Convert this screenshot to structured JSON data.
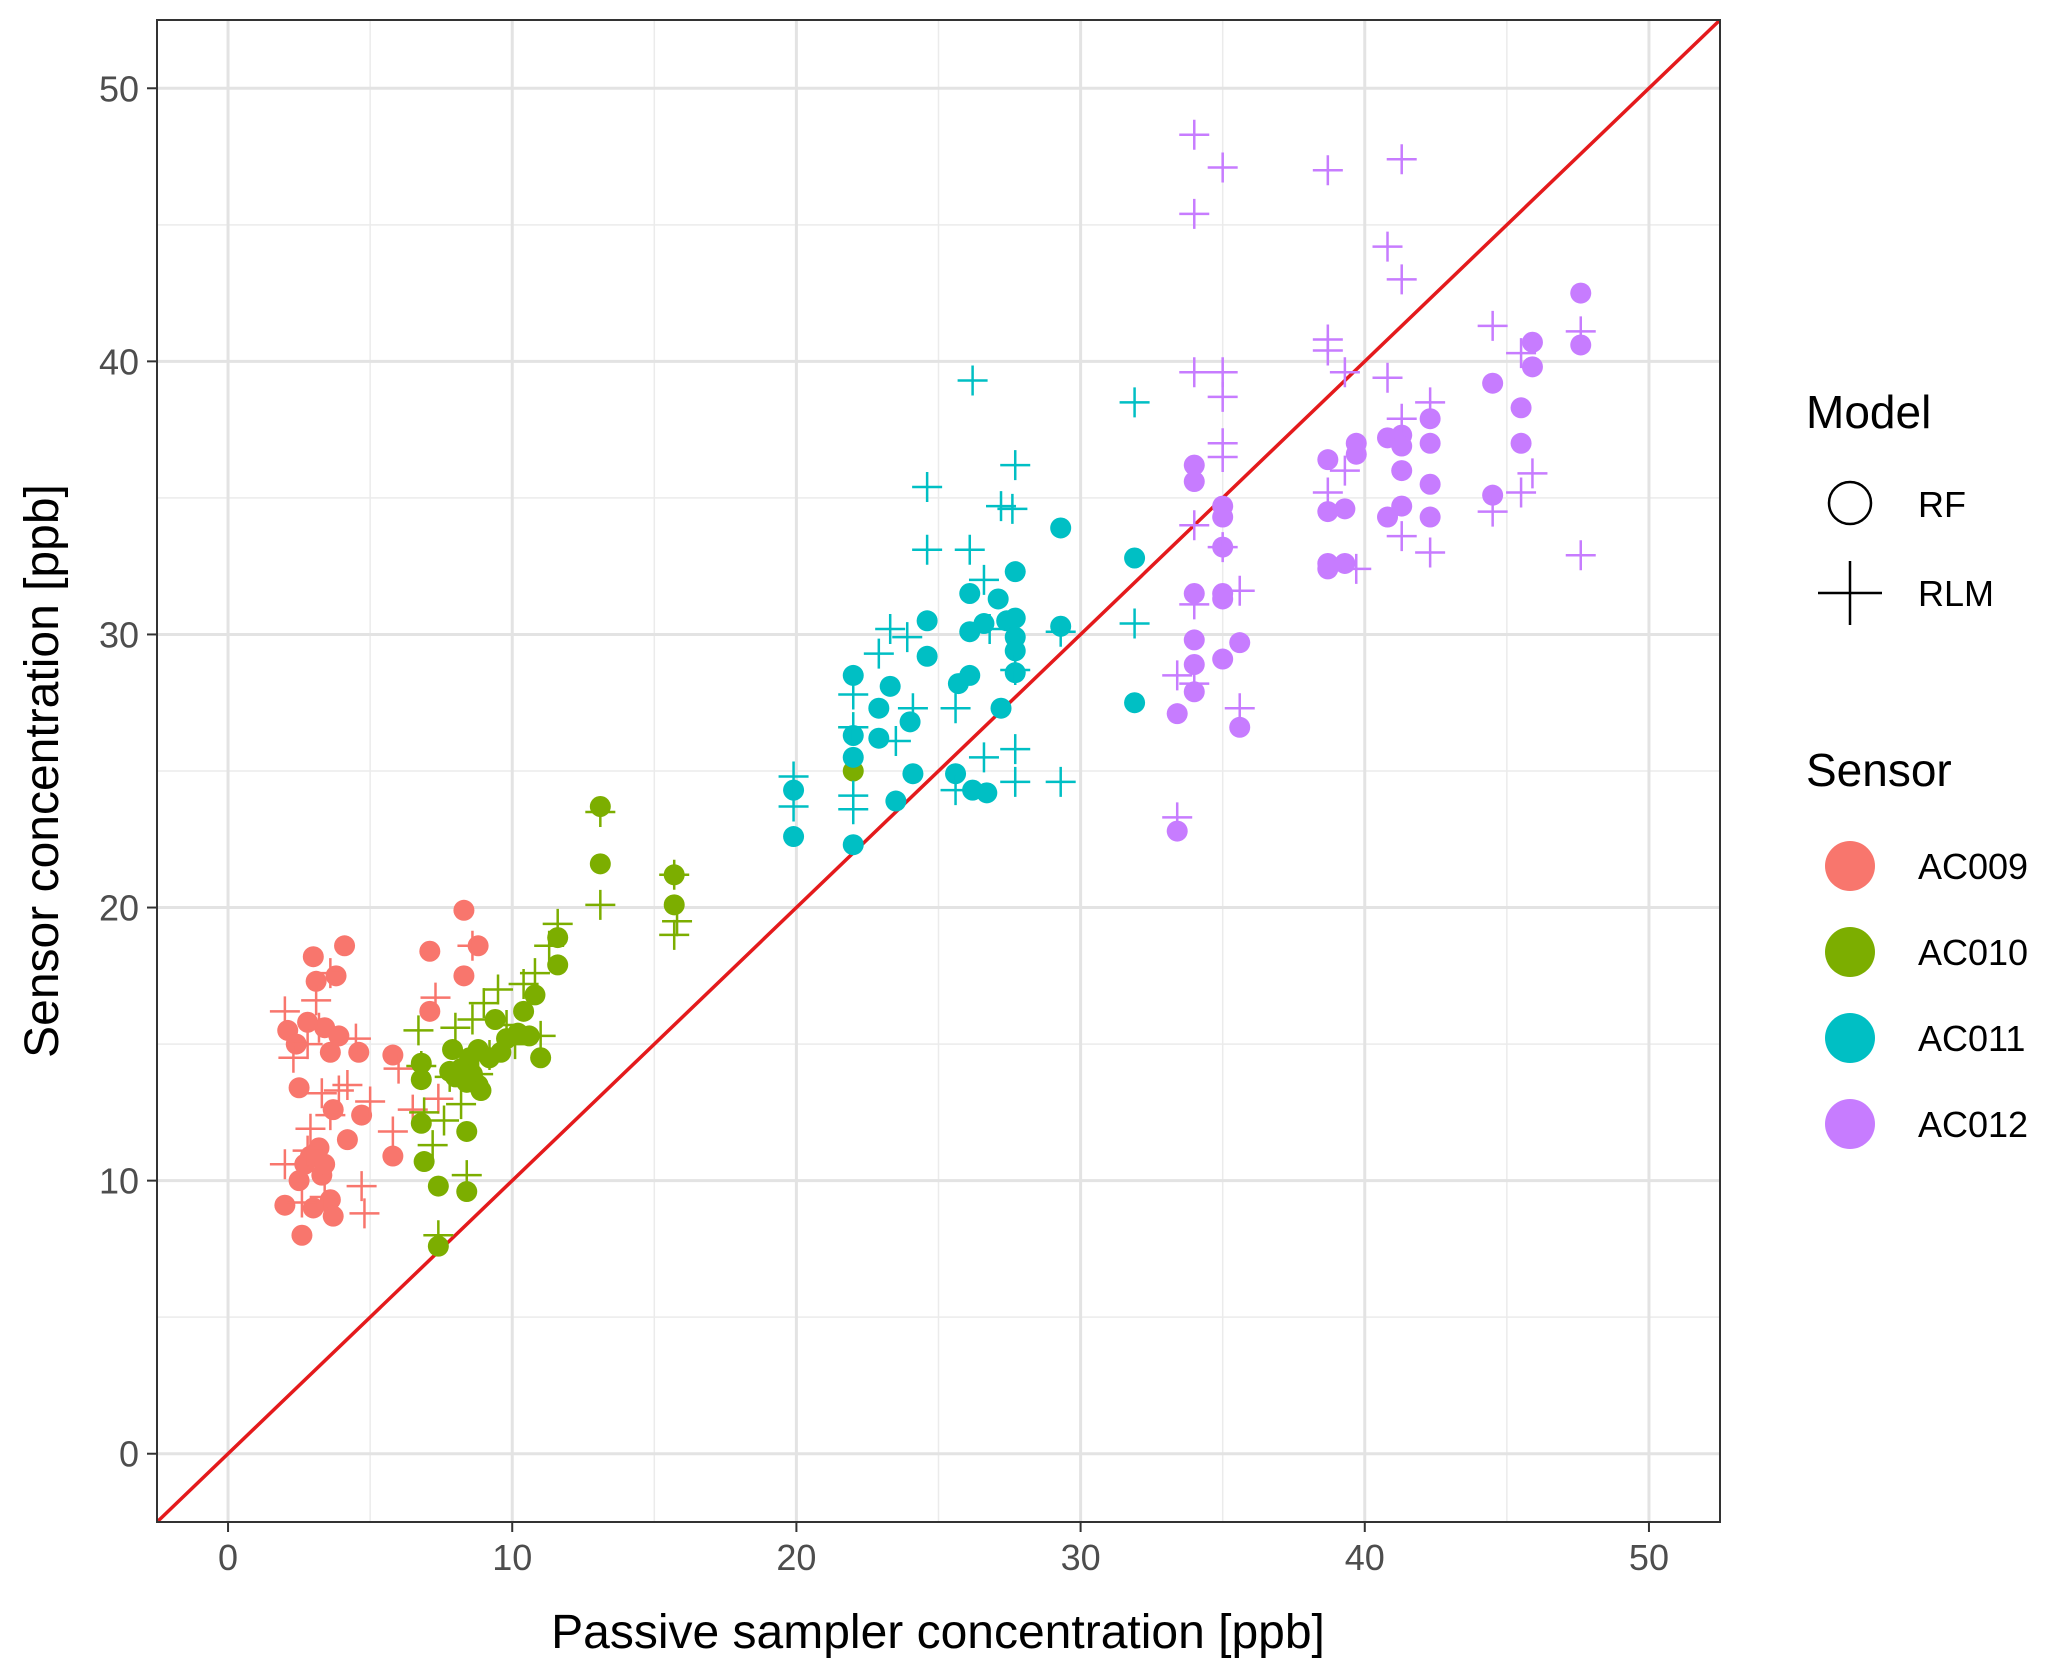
{
  "chart_data": {
    "type": "scatter",
    "xlabel": "Passive sampler concentration [ppb]",
    "ylabel": "Sensor concentration [ppb]",
    "xlim": [
      -2.5,
      52.5
    ],
    "ylim": [
      -2.5,
      52.5
    ],
    "x_ticks": [
      0,
      10,
      20,
      30,
      40,
      50
    ],
    "y_ticks": [
      0,
      10,
      20,
      30,
      40,
      50
    ],
    "grid": true,
    "legend_position": "right",
    "reference_line": {
      "slope": 1,
      "intercept": 0,
      "color": "#e41a1c"
    },
    "legend": {
      "model_title": "Model",
      "models": [
        {
          "name": "RF",
          "shape": "circle"
        },
        {
          "name": "RLM",
          "shape": "cross"
        }
      ],
      "sensor_title": "Sensor",
      "sensors": [
        {
          "name": "AC009",
          "color": "#f8766d"
        },
        {
          "name": "AC010",
          "color": "#7cae00"
        },
        {
          "name": "AC011",
          "color": "#00bfc4"
        },
        {
          "name": "AC012",
          "color": "#c77cff"
        }
      ]
    },
    "series": [
      {
        "name": "AC009",
        "model": "RF",
        "shape": "circle",
        "color": "#f8766d",
        "points": [
          [
            2,
            9.1
          ],
          [
            2.1,
            15.5
          ],
          [
            2.4,
            15.0
          ],
          [
            2.5,
            13.4
          ],
          [
            2.5,
            10.0
          ],
          [
            2.6,
            8.0
          ],
          [
            2.7,
            10.6
          ],
          [
            2.8,
            15.8
          ],
          [
            3.0,
            18.2
          ],
          [
            3.1,
            17.3
          ],
          [
            3.2,
            11.2
          ],
          [
            3.3,
            10.2
          ],
          [
            3.4,
            15.6
          ],
          [
            3.6,
            14.7
          ],
          [
            3.6,
            9.3
          ],
          [
            3.7,
            12.6
          ],
          [
            3.7,
            8.7
          ],
          [
            3.8,
            17.5
          ],
          [
            3.9,
            15.3
          ],
          [
            4.1,
            18.6
          ],
          [
            4.2,
            11.5
          ],
          [
            4.6,
            14.7
          ],
          [
            4.7,
            12.4
          ],
          [
            5.8,
            14.6
          ],
          [
            5.8,
            10.9
          ],
          [
            7.1,
            18.4
          ],
          [
            7.1,
            16.2
          ],
          [
            8.3,
            19.9
          ],
          [
            8.3,
            17.5
          ],
          [
            8.8,
            18.6
          ],
          [
            3.0,
            9.0
          ],
          [
            2.9,
            10.9
          ],
          [
            3.4,
            10.6
          ]
        ]
      },
      {
        "name": "AC009",
        "model": "RLM",
        "shape": "cross",
        "color": "#f8766d",
        "points": [
          [
            2.0,
            16.2
          ],
          [
            2.0,
            10.6
          ],
          [
            2.3,
            14.5
          ],
          [
            2.6,
            9.2
          ],
          [
            2.8,
            15.0
          ],
          [
            2.9,
            11.9
          ],
          [
            3.1,
            16.6
          ],
          [
            3.3,
            13.2
          ],
          [
            3.4,
            9.4
          ],
          [
            3.6,
            17.6
          ],
          [
            3.6,
            12.4
          ],
          [
            3.9,
            13.3
          ],
          [
            4.2,
            13.5
          ],
          [
            4.5,
            15.2
          ],
          [
            4.7,
            9.8
          ],
          [
            4.8,
            8.8
          ],
          [
            5.0,
            12.9
          ],
          [
            5.8,
            11.8
          ],
          [
            6.0,
            14.1
          ],
          [
            6.5,
            12.6
          ],
          [
            7.3,
            16.7
          ],
          [
            7.4,
            13.0
          ],
          [
            8.6,
            18.6
          ],
          [
            3.2,
            15.6
          ],
          [
            2.8,
            11.1
          ]
        ]
      },
      {
        "name": "AC010",
        "model": "RF",
        "shape": "circle",
        "color": "#7cae00",
        "points": [
          [
            6.8,
            14.3
          ],
          [
            6.8,
            13.7
          ],
          [
            6.8,
            12.1
          ],
          [
            6.9,
            10.7
          ],
          [
            7.4,
            7.6
          ],
          [
            7.4,
            9.8
          ],
          [
            7.8,
            14.0
          ],
          [
            7.9,
            14.8
          ],
          [
            8.0,
            13.8
          ],
          [
            8.2,
            14.1
          ],
          [
            8.4,
            13.6
          ],
          [
            8.4,
            11.8
          ],
          [
            8.5,
            14.5
          ],
          [
            8.6,
            13.9
          ],
          [
            8.8,
            13.5
          ],
          [
            8.8,
            14.8
          ],
          [
            8.9,
            13.3
          ],
          [
            9.2,
            14.5
          ],
          [
            9.4,
            15.9
          ],
          [
            9.6,
            14.7
          ],
          [
            9.8,
            15.2
          ],
          [
            10.2,
            15.4
          ],
          [
            10.4,
            16.2
          ],
          [
            10.6,
            15.3
          ],
          [
            10.8,
            16.8
          ],
          [
            11.0,
            14.5
          ],
          [
            11.6,
            17.9
          ],
          [
            11.6,
            18.9
          ],
          [
            13.1,
            23.7
          ],
          [
            13.1,
            21.6
          ],
          [
            15.7,
            21.2
          ],
          [
            15.7,
            20.1
          ],
          [
            22.0,
            25.0
          ],
          [
            8.4,
            9.6
          ]
        ]
      },
      {
        "name": "AC010",
        "model": "RLM",
        "shape": "cross",
        "color": "#7cae00",
        "points": [
          [
            6.7,
            15.5
          ],
          [
            6.8,
            14.2
          ],
          [
            6.9,
            12.5
          ],
          [
            7.2,
            11.3
          ],
          [
            7.4,
            8.0
          ],
          [
            7.6,
            12.2
          ],
          [
            7.8,
            13.8
          ],
          [
            8.0,
            15.6
          ],
          [
            8.2,
            12.8
          ],
          [
            8.4,
            10.2
          ],
          [
            8.6,
            15.9
          ],
          [
            8.8,
            13.9
          ],
          [
            9.0,
            16.5
          ],
          [
            9.2,
            14.6
          ],
          [
            9.5,
            17.0
          ],
          [
            9.8,
            15.7
          ],
          [
            10.1,
            15.0
          ],
          [
            10.4,
            17.2
          ],
          [
            10.8,
            17.6
          ],
          [
            11.0,
            15.3
          ],
          [
            11.3,
            18.6
          ],
          [
            11.6,
            19.4
          ],
          [
            13.1,
            20.1
          ],
          [
            13.1,
            23.5
          ],
          [
            15.7,
            21.2
          ],
          [
            15.7,
            19.0
          ],
          [
            15.8,
            19.5
          ],
          [
            22.0,
            26.6
          ]
        ]
      },
      {
        "name": "AC011",
        "model": "RF",
        "shape": "circle",
        "color": "#00bfc4",
        "points": [
          [
            19.9,
            24.3
          ],
          [
            19.9,
            22.6
          ],
          [
            22.0,
            28.5
          ],
          [
            22.0,
            26.3
          ],
          [
            22.0,
            25.5
          ],
          [
            22.0,
            22.3
          ],
          [
            22.9,
            27.3
          ],
          [
            22.9,
            26.2
          ],
          [
            23.3,
            28.1
          ],
          [
            23.5,
            23.9
          ],
          [
            24.0,
            26.8
          ],
          [
            24.1,
            24.9
          ],
          [
            24.6,
            30.5
          ],
          [
            24.6,
            29.2
          ],
          [
            25.6,
            24.9
          ],
          [
            25.7,
            28.2
          ],
          [
            26.1,
            28.5
          ],
          [
            26.1,
            31.5
          ],
          [
            26.1,
            30.1
          ],
          [
            26.2,
            24.3
          ],
          [
            26.6,
            30.4
          ],
          [
            26.7,
            24.2
          ],
          [
            27.1,
            31.3
          ],
          [
            27.2,
            27.3
          ],
          [
            27.4,
            30.5
          ],
          [
            27.7,
            32.3
          ],
          [
            27.7,
            30.6
          ],
          [
            27.7,
            29.9
          ],
          [
            27.7,
            29.4
          ],
          [
            27.7,
            28.6
          ],
          [
            29.3,
            33.9
          ],
          [
            29.3,
            30.3
          ],
          [
            31.9,
            32.8
          ],
          [
            31.9,
            27.5
          ]
        ]
      },
      {
        "name": "AC011",
        "model": "RLM",
        "shape": "cross",
        "color": "#00bfc4",
        "points": [
          [
            19.9,
            24.8
          ],
          [
            19.9,
            23.7
          ],
          [
            22.0,
            27.8
          ],
          [
            22.0,
            26.6
          ],
          [
            22.0,
            24.1
          ],
          [
            22.0,
            23.6
          ],
          [
            22.9,
            29.3
          ],
          [
            23.3,
            30.2
          ],
          [
            23.5,
            26.1
          ],
          [
            23.9,
            29.9
          ],
          [
            24.1,
            27.3
          ],
          [
            24.6,
            35.4
          ],
          [
            24.6,
            33.1
          ],
          [
            25.6,
            24.3
          ],
          [
            25.6,
            27.3
          ],
          [
            26.1,
            33.1
          ],
          [
            26.2,
            39.3
          ],
          [
            26.6,
            25.5
          ],
          [
            26.6,
            32.0
          ],
          [
            26.8,
            30.2
          ],
          [
            27.2,
            34.7
          ],
          [
            27.6,
            34.6
          ],
          [
            27.7,
            36.2
          ],
          [
            27.7,
            28.7
          ],
          [
            27.7,
            25.8
          ],
          [
            27.7,
            24.6
          ],
          [
            29.3,
            24.6
          ],
          [
            29.3,
            30.1
          ],
          [
            31.9,
            38.5
          ],
          [
            31.9,
            30.4
          ]
        ]
      },
      {
        "name": "AC012",
        "model": "RF",
        "shape": "circle",
        "color": "#c77cff",
        "points": [
          [
            33.4,
            22.8
          ],
          [
            33.4,
            27.1
          ],
          [
            34.0,
            36.2
          ],
          [
            34.0,
            35.6
          ],
          [
            34.0,
            31.5
          ],
          [
            34.0,
            29.8
          ],
          [
            34.0,
            28.9
          ],
          [
            34.0,
            27.9
          ],
          [
            35.0,
            34.7
          ],
          [
            35.0,
            34.3
          ],
          [
            35.0,
            33.2
          ],
          [
            35.0,
            31.5
          ],
          [
            35.0,
            31.3
          ],
          [
            35.0,
            29.1
          ],
          [
            35.6,
            29.7
          ],
          [
            35.6,
            26.6
          ],
          [
            38.7,
            36.4
          ],
          [
            38.7,
            34.5
          ],
          [
            38.7,
            32.6
          ],
          [
            38.7,
            32.4
          ],
          [
            39.3,
            34.6
          ],
          [
            39.3,
            32.6
          ],
          [
            39.7,
            37.0
          ],
          [
            39.7,
            36.6
          ],
          [
            40.8,
            37.2
          ],
          [
            40.8,
            34.3
          ],
          [
            41.3,
            37.3
          ],
          [
            41.3,
            36.9
          ],
          [
            41.3,
            36.0
          ],
          [
            41.3,
            34.7
          ],
          [
            42.3,
            37.9
          ],
          [
            42.3,
            37.0
          ],
          [
            42.3,
            35.5
          ],
          [
            42.3,
            34.3
          ],
          [
            44.5,
            39.2
          ],
          [
            44.5,
            35.1
          ],
          [
            45.5,
            38.3
          ],
          [
            45.5,
            37.0
          ],
          [
            45.9,
            40.7
          ],
          [
            45.9,
            39.8
          ],
          [
            47.6,
            42.5
          ],
          [
            47.6,
            40.6
          ]
        ]
      },
      {
        "name": "AC012",
        "model": "RLM",
        "shape": "cross",
        "color": "#c77cff",
        "points": [
          [
            33.4,
            23.3
          ],
          [
            33.4,
            28.5
          ],
          [
            34.0,
            48.3
          ],
          [
            34.0,
            45.4
          ],
          [
            34.0,
            39.6
          ],
          [
            34.0,
            34.0
          ],
          [
            34.0,
            31.1
          ],
          [
            34.0,
            28.2
          ],
          [
            35.0,
            47.1
          ],
          [
            35.0,
            39.6
          ],
          [
            35.0,
            38.7
          ],
          [
            35.0,
            37.0
          ],
          [
            35.0,
            36.5
          ],
          [
            35.0,
            33.2
          ],
          [
            35.6,
            31.6
          ],
          [
            35.6,
            27.3
          ],
          [
            38.7,
            47.0
          ],
          [
            38.7,
            40.8
          ],
          [
            38.7,
            40.4
          ],
          [
            38.7,
            35.2
          ],
          [
            39.3,
            39.6
          ],
          [
            39.3,
            36.0
          ],
          [
            39.7,
            32.4
          ],
          [
            40.8,
            44.2
          ],
          [
            40.8,
            39.4
          ],
          [
            41.3,
            47.4
          ],
          [
            41.3,
            43.0
          ],
          [
            41.3,
            37.9
          ],
          [
            41.3,
            33.6
          ],
          [
            42.3,
            38.5
          ],
          [
            42.3,
            33.0
          ],
          [
            44.5,
            41.3
          ],
          [
            44.5,
            34.5
          ],
          [
            45.5,
            40.3
          ],
          [
            45.5,
            35.2
          ],
          [
            45.9,
            35.9
          ],
          [
            47.6,
            41.1
          ],
          [
            47.6,
            32.9
          ]
        ]
      }
    ]
  }
}
